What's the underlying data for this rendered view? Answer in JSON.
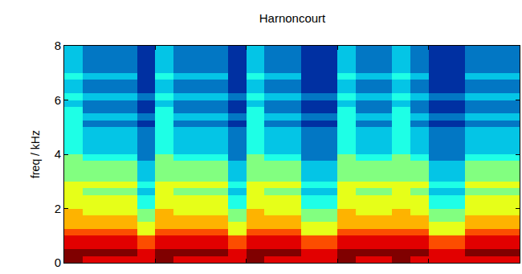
{
  "chart_data": {
    "type": "heatmap",
    "title": "Harnoncourt",
    "y_label": "freq / kHz",
    "x": [
      0.1,
      0.3,
      0.5,
      0.7,
      0.9,
      1.1,
      1.3,
      1.5,
      1.7,
      1.9,
      2.1,
      2.3,
      2.5,
      2.7,
      2.9,
      3.1,
      3.3,
      3.5,
      3.7,
      3.9,
      4.1,
      4.3,
      4.5,
      4.7,
      4.9
    ],
    "y": [
      0.125,
      0.375,
      0.625,
      0.875,
      1.125,
      1.375,
      1.625,
      1.875,
      2.125,
      2.375,
      2.625,
      2.875,
      3.125,
      3.375,
      3.625,
      3.875,
      4.125,
      4.375,
      4.625,
      4.875,
      5.125,
      5.375,
      5.625,
      5.875,
      6.125,
      6.375,
      6.625,
      6.875,
      7.125,
      7.375,
      7.625,
      7.875
    ],
    "xlim": [
      0,
      5
    ],
    "xticks": [
      1,
      2,
      3,
      4
    ],
    "ylim": [
      0,
      8
    ],
    "yticks": [
      0,
      2,
      4,
      6,
      8
    ],
    "zlim": [
      0,
      10
    ],
    "tick_labels": "y",
    "cells": [
      [
        10,
        9,
        9,
        9,
        9,
        10,
        9,
        9,
        9,
        9,
        10,
        9,
        9,
        9,
        9,
        10,
        9,
        9,
        10,
        9,
        9,
        9,
        9,
        9,
        9
      ],
      [
        10,
        10,
        10,
        10,
        9,
        10,
        10,
        10,
        10,
        9,
        10,
        10,
        10,
        9,
        9,
        10,
        10,
        10,
        10,
        10,
        9,
        9,
        10,
        10,
        10
      ],
      [
        9,
        9,
        9,
        9,
        8,
        9,
        9,
        9,
        9,
        8,
        9,
        9,
        9,
        8,
        8,
        9,
        9,
        9,
        9,
        9,
        8,
        8,
        9,
        9,
        9
      ],
      [
        9,
        9,
        9,
        9,
        8,
        9,
        9,
        9,
        9,
        8,
        9,
        9,
        9,
        8,
        8,
        9,
        9,
        9,
        9,
        9,
        8,
        8,
        9,
        9,
        9
      ],
      [
        8,
        8,
        8,
        8,
        6,
        8,
        8,
        8,
        8,
        6,
        8,
        8,
        8,
        6,
        6,
        8,
        8,
        8,
        8,
        8,
        6,
        6,
        8,
        8,
        8
      ],
      [
        7,
        7,
        7,
        7,
        6,
        7,
        7,
        7,
        7,
        6,
        7,
        7,
        7,
        6,
        6,
        7,
        7,
        7,
        7,
        7,
        6,
        6,
        7,
        7,
        7
      ],
      [
        7,
        7,
        7,
        7,
        5,
        7,
        7,
        7,
        7,
        5,
        7,
        7,
        7,
        5,
        5,
        7,
        7,
        7,
        7,
        7,
        5,
        5,
        7,
        7,
        7
      ],
      [
        7,
        6,
        6,
        6,
        5,
        7,
        6,
        6,
        6,
        5,
        7,
        6,
        6,
        5,
        5,
        7,
        6,
        6,
        7,
        6,
        5,
        5,
        6,
        6,
        6
      ],
      [
        6,
        6,
        6,
        6,
        4,
        6,
        6,
        6,
        6,
        4,
        6,
        6,
        6,
        4,
        4,
        6,
        6,
        6,
        6,
        6,
        4,
        4,
        6,
        6,
        6
      ],
      [
        6,
        6,
        6,
        6,
        4,
        6,
        6,
        6,
        6,
        4,
        6,
        6,
        6,
        4,
        4,
        6,
        6,
        6,
        6,
        6,
        4,
        4,
        6,
        6,
        6
      ],
      [
        6,
        5,
        5,
        5,
        3,
        6,
        5,
        5,
        5,
        3,
        6,
        5,
        5,
        3,
        3,
        6,
        5,
        5,
        6,
        5,
        3,
        3,
        5,
        5,
        5
      ],
      [
        6,
        6,
        6,
        6,
        4,
        6,
        6,
        6,
        6,
        4,
        6,
        6,
        6,
        4,
        4,
        6,
        6,
        6,
        6,
        6,
        4,
        4,
        6,
        6,
        6
      ],
      [
        5,
        5,
        5,
        5,
        3,
        5,
        5,
        5,
        5,
        3,
        5,
        5,
        5,
        3,
        3,
        5,
        5,
        5,
        5,
        5,
        3,
        3,
        5,
        5,
        5
      ],
      [
        5,
        5,
        5,
        5,
        3,
        5,
        5,
        5,
        5,
        3,
        5,
        5,
        5,
        3,
        3,
        5,
        5,
        5,
        5,
        5,
        3,
        3,
        5,
        5,
        5
      ],
      [
        5,
        5,
        5,
        5,
        3,
        5,
        5,
        5,
        5,
        3,
        5,
        5,
        5,
        3,
        3,
        5,
        5,
        5,
        5,
        5,
        3,
        3,
        5,
        5,
        5
      ],
      [
        5,
        4,
        4,
        4,
        2,
        5,
        4,
        4,
        4,
        2,
        5,
        4,
        4,
        2,
        2,
        5,
        4,
        4,
        5,
        4,
        2,
        2,
        4,
        4,
        4
      ],
      [
        4,
        3,
        3,
        3,
        2,
        4,
        3,
        3,
        3,
        2,
        4,
        3,
        3,
        2,
        2,
        4,
        3,
        3,
        4,
        3,
        2,
        2,
        3,
        3,
        3
      ],
      [
        4,
        3,
        3,
        3,
        2,
        4,
        3,
        3,
        3,
        2,
        4,
        3,
        3,
        2,
        2,
        4,
        3,
        3,
        4,
        3,
        2,
        2,
        3,
        3,
        3
      ],
      [
        4,
        3,
        3,
        3,
        2,
        4,
        3,
        3,
        3,
        2,
        4,
        3,
        3,
        2,
        2,
        4,
        3,
        3,
        4,
        3,
        2,
        2,
        3,
        3,
        3
      ],
      [
        4,
        3,
        3,
        3,
        2,
        4,
        3,
        3,
        3,
        2,
        4,
        3,
        3,
        2,
        2,
        4,
        3,
        3,
        4,
        3,
        2,
        2,
        3,
        3,
        3
      ],
      [
        4,
        2,
        2,
        2,
        1,
        4,
        2,
        2,
        2,
        1,
        4,
        2,
        2,
        1,
        1,
        4,
        2,
        2,
        4,
        2,
        1,
        1,
        2,
        2,
        2
      ],
      [
        4,
        3,
        3,
        3,
        2,
        4,
        3,
        3,
        3,
        2,
        4,
        3,
        3,
        2,
        2,
        4,
        3,
        3,
        4,
        3,
        2,
        2,
        3,
        3,
        3
      ],
      [
        4,
        2,
        2,
        2,
        1,
        4,
        2,
        2,
        2,
        1,
        4,
        2,
        2,
        1,
        1,
        4,
        2,
        2,
        4,
        2,
        1,
        1,
        2,
        2,
        2
      ],
      [
        3,
        2,
        2,
        2,
        1,
        3,
        2,
        2,
        2,
        1,
        3,
        2,
        2,
        1,
        1,
        3,
        2,
        2,
        3,
        2,
        1,
        1,
        2,
        2,
        2
      ],
      [
        4,
        3,
        3,
        3,
        2,
        4,
        3,
        3,
        3,
        2,
        4,
        3,
        3,
        2,
        2,
        4,
        3,
        3,
        4,
        3,
        2,
        2,
        3,
        3,
        3
      ],
      [
        3,
        2,
        2,
        2,
        1,
        3,
        2,
        2,
        2,
        1,
        3,
        2,
        2,
        1,
        1,
        3,
        2,
        2,
        3,
        2,
        1,
        1,
        2,
        2,
        2
      ],
      [
        3,
        2,
        2,
        2,
        1,
        3,
        2,
        2,
        2,
        1,
        3,
        2,
        2,
        1,
        1,
        3,
        2,
        2,
        3,
        2,
        1,
        1,
        2,
        2,
        2
      ],
      [
        4,
        3,
        3,
        3,
        1,
        4,
        3,
        3,
        3,
        1,
        4,
        3,
        3,
        1,
        1,
        4,
        3,
        3,
        4,
        3,
        1,
        1,
        3,
        3,
        3
      ],
      [
        3,
        2,
        2,
        2,
        1,
        3,
        2,
        2,
        2,
        1,
        3,
        2,
        2,
        1,
        1,
        3,
        2,
        2,
        3,
        2,
        1,
        1,
        2,
        2,
        2
      ],
      [
        3,
        2,
        2,
        2,
        1,
        3,
        2,
        2,
        2,
        1,
        3,
        2,
        2,
        1,
        1,
        3,
        2,
        2,
        3,
        2,
        1,
        1,
        2,
        2,
        2
      ],
      [
        3,
        2,
        2,
        2,
        1,
        3,
        2,
        2,
        2,
        1,
        3,
        2,
        2,
        1,
        1,
        3,
        2,
        2,
        3,
        2,
        1,
        1,
        2,
        2,
        2
      ],
      [
        3,
        2,
        2,
        2,
        1,
        3,
        2,
        2,
        2,
        1,
        3,
        2,
        2,
        1,
        1,
        3,
        2,
        2,
        3,
        2,
        1,
        1,
        2,
        2,
        2
      ]
    ]
  }
}
